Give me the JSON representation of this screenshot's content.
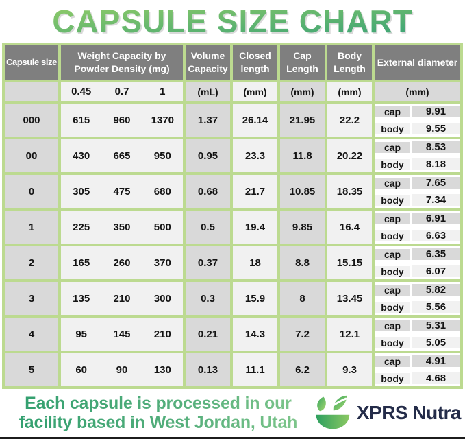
{
  "title": "CAPSULE SIZE CHART",
  "table": {
    "headers": {
      "capsule_size": "Capsule size",
      "weight_capacity": "Weight Capacity by Powder Density (mg)",
      "volume_capacity": "Volume Capacity",
      "closed_length": "Closed length",
      "cap_length": "Cap Length",
      "body_length": "Body Length",
      "external_diameter": "External diameter"
    },
    "subheaders": {
      "densities": [
        "0.45",
        "0.7",
        "1"
      ],
      "volume_unit": "(mL)",
      "closed_unit": "(mm)",
      "cap_unit": "(mm)",
      "body_unit": "(mm)",
      "external_unit": "(mm)"
    },
    "external_row_labels": [
      "cap",
      "body"
    ]
  },
  "chart_data": {
    "type": "table",
    "title": "Capsule Size Chart",
    "columns": [
      "Capsule size",
      "Weight Capacity by Powder Density 0.45 (mg)",
      "Weight Capacity by Powder Density 0.7 (mg)",
      "Weight Capacity by Powder Density 1 (mg)",
      "Volume Capacity (mL)",
      "Closed length (mm)",
      "Cap Length (mm)",
      "Body Length (mm)",
      "External diameter cap (mm)",
      "External diameter body (mm)"
    ],
    "rows": [
      {
        "size": "000",
        "weight_045": "615",
        "weight_07": "960",
        "weight_1": "1370",
        "volume_ml": "1.37",
        "closed_length_mm": "26.14",
        "cap_length_mm": "21.95",
        "body_length_mm": "22.2",
        "external_cap_mm": "9.91",
        "external_body_mm": "9.55"
      },
      {
        "size": "00",
        "weight_045": "430",
        "weight_07": "665",
        "weight_1": "950",
        "volume_ml": "0.95",
        "closed_length_mm": "23.3",
        "cap_length_mm": "11.8",
        "body_length_mm": "20.22",
        "external_cap_mm": "8.53",
        "external_body_mm": "8.18"
      },
      {
        "size": "0",
        "weight_045": "305",
        "weight_07": "475",
        "weight_1": "680",
        "volume_ml": "0.68",
        "closed_length_mm": "21.7",
        "cap_length_mm": "10.85",
        "body_length_mm": "18.35",
        "external_cap_mm": "7.65",
        "external_body_mm": "7.34"
      },
      {
        "size": "1",
        "weight_045": "225",
        "weight_07": "350",
        "weight_1": "500",
        "volume_ml": "0.5",
        "closed_length_mm": "19.4",
        "cap_length_mm": "9.85",
        "body_length_mm": "16.4",
        "external_cap_mm": "6.91",
        "external_body_mm": "6.63"
      },
      {
        "size": "2",
        "weight_045": "165",
        "weight_07": "260",
        "weight_1": "370",
        "volume_ml": "0.37",
        "closed_length_mm": "18",
        "cap_length_mm": "8.8",
        "body_length_mm": "15.15",
        "external_cap_mm": "6.35",
        "external_body_mm": "6.07"
      },
      {
        "size": "3",
        "weight_045": "135",
        "weight_07": "210",
        "weight_1": "300",
        "volume_ml": "0.3",
        "closed_length_mm": "15.9",
        "cap_length_mm": "8",
        "body_length_mm": "13.45",
        "external_cap_mm": "5.82",
        "external_body_mm": "5.56"
      },
      {
        "size": "4",
        "weight_045": "95",
        "weight_07": "145",
        "weight_1": "210",
        "volume_ml": "0.21",
        "closed_length_mm": "14.3",
        "cap_length_mm": "7.2",
        "body_length_mm": "12.1",
        "external_cap_mm": "5.31",
        "external_body_mm": "5.05"
      },
      {
        "size": "5",
        "weight_045": "60",
        "weight_07": "90",
        "weight_1": "130",
        "volume_ml": "0.13",
        "closed_length_mm": "11.1",
        "cap_length_mm": "6.2",
        "body_length_mm": "9.3",
        "external_cap_mm": "4.91",
        "external_body_mm": "4.68"
      }
    ]
  },
  "footer": {
    "note": "Each capsule is processed in our facility based in West Jordan, Utah",
    "brand": "XPRS Nutra",
    "logo_icon": "plant-bowl-icon"
  },
  "colors": {
    "title_gradient_top": "#9ed167",
    "title_gradient_bottom": "#2b9c79",
    "table_border_green": "#bcda90",
    "header_gray": "#7f7f7f",
    "cell_gray": "#d9d9d9",
    "cell_light": "#f1f1f1",
    "footer_green": "#3aa273",
    "brand_navy": "#242c49"
  }
}
